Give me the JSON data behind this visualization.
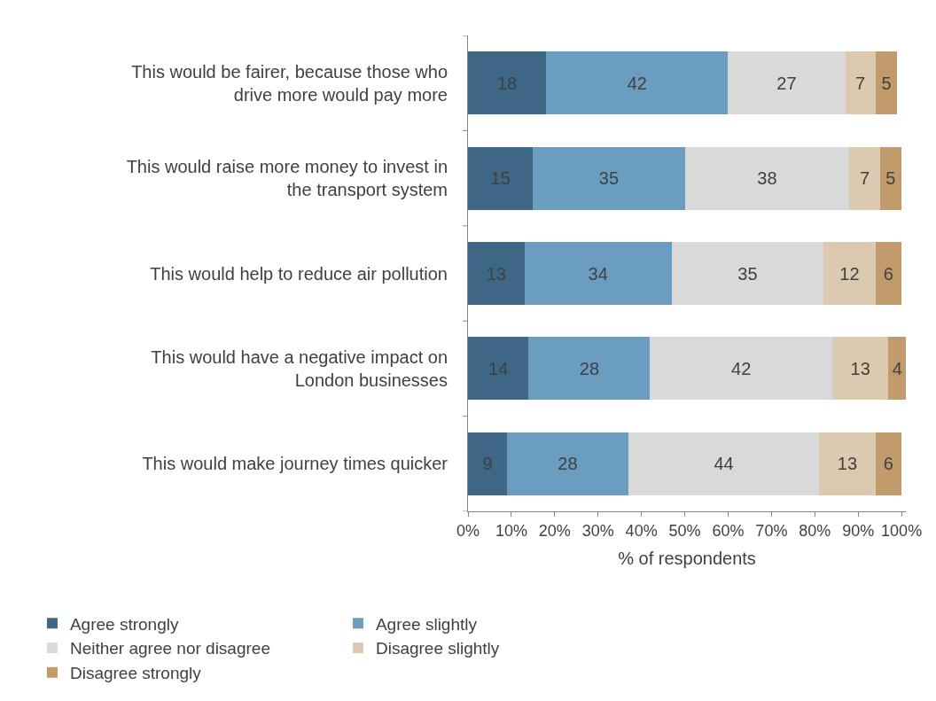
{
  "chart_data": {
    "type": "bar",
    "orientation": "horizontal",
    "stacked": true,
    "xlabel": "% of respondents",
    "categories": [
      "This would be fairer, because those who drive more would pay more",
      "This would raise more money to invest in the transport system",
      "This would help to reduce air pollution",
      "This would have a negative impact on London businesses",
      "This would make journey times quicker"
    ],
    "series": [
      {
        "name": "Agree strongly",
        "color": "#3e6685",
        "values": [
          18,
          15,
          13,
          14,
          9
        ]
      },
      {
        "name": "Agree slightly",
        "color": "#6b9dc0",
        "values": [
          42,
          35,
          34,
          28,
          28
        ]
      },
      {
        "name": "Neither agree nor disagree",
        "color": "#d9d9d9",
        "values": [
          27,
          38,
          35,
          42,
          44
        ]
      },
      {
        "name": "Disagree slightly",
        "color": "#dccab0",
        "values": [
          7,
          7,
          12,
          13,
          13
        ]
      },
      {
        "name": "Disagree strongly",
        "color": "#c19b6c",
        "values": [
          5,
          5,
          6,
          4,
          6
        ]
      }
    ],
    "xlim": [
      0,
      101
    ],
    "xticks": [
      {
        "value": 0,
        "label": "0%"
      },
      {
        "value": 10,
        "label": "10%"
      },
      {
        "value": 20,
        "label": "20%"
      },
      {
        "value": 30,
        "label": "30%"
      },
      {
        "value": 40,
        "label": "40%"
      },
      {
        "value": 50,
        "label": "50%"
      },
      {
        "value": 60,
        "label": "60%"
      },
      {
        "value": 70,
        "label": "70%"
      },
      {
        "value": 80,
        "label": "80%"
      },
      {
        "value": 90,
        "label": "90%"
      },
      {
        "value": 100,
        "label": "100%"
      }
    ],
    "data_labels": true,
    "legend": "bottom"
  }
}
